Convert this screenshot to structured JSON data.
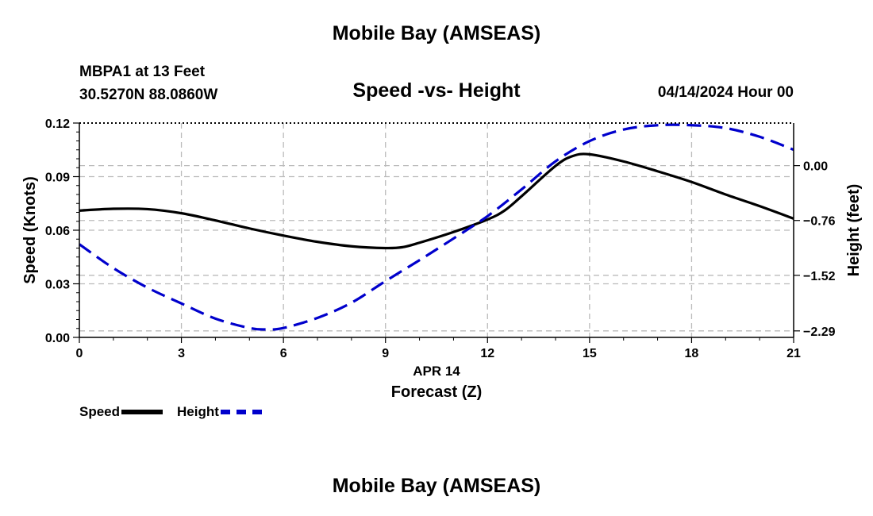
{
  "header": {
    "title": "Mobile Bay (AMSEAS)",
    "station_line": "MBPA1 at 13 Feet",
    "coords_line": "30.5270N  88.0860W",
    "subtitle": "Speed -vs- Height",
    "datetime": "04/14/2024 Hour 00"
  },
  "footer": {
    "title": "Mobile Bay (AMSEAS)"
  },
  "legend": {
    "speed_label": "Speed",
    "height_label": "Height"
  },
  "colors": {
    "speed": "#000000",
    "height": "#0000cc",
    "grid": "#bbbbbb"
  },
  "chart_data": {
    "type": "line",
    "title": "Speed -vs- Height",
    "xlabel": "Forecast (Z)",
    "xdate_label": "APR 14",
    "ylabel": "Speed (Knots)",
    "y2label": "Height (feet)",
    "xlim": [
      0,
      21
    ],
    "ylim": [
      0,
      0.12
    ],
    "y2lim": [
      -2.38,
      0.59
    ],
    "x_ticks": [
      "0",
      "3",
      "6",
      "9",
      "12",
      "15",
      "18",
      "21"
    ],
    "y_ticks": [
      "0.00",
      "0.03",
      "0.06",
      "0.09",
      "0.12"
    ],
    "y2_ticks": [
      "-2.29",
      "-1.52",
      "-0.76",
      "0.00"
    ],
    "grid": true,
    "series": [
      {
        "name": "Speed",
        "axis": "left",
        "style": "solid",
        "x": [
          0,
          1,
          2,
          3,
          4,
          5,
          6,
          7,
          8,
          9,
          9.5,
          10,
          11,
          12,
          12.5,
          13,
          14,
          14.5,
          15,
          16,
          17,
          18,
          19,
          20,
          21
        ],
        "values": [
          0.071,
          0.072,
          0.0718,
          0.0695,
          0.0655,
          0.061,
          0.057,
          0.0535,
          0.051,
          0.05,
          0.0505,
          0.053,
          0.059,
          0.066,
          0.071,
          0.079,
          0.096,
          0.1015,
          0.1025,
          0.0985,
          0.093,
          0.087,
          0.08,
          0.0735,
          0.0665
        ]
      },
      {
        "name": "Height",
        "axis": "right",
        "style": "dashed",
        "x": [
          0,
          1,
          2,
          3,
          4,
          5,
          5.5,
          6,
          7,
          8,
          9,
          10,
          11,
          12,
          13,
          14,
          15,
          16,
          17,
          18,
          19,
          20,
          21
        ],
        "values": [
          -1.09,
          -1.42,
          -1.69,
          -1.91,
          -2.12,
          -2.25,
          -2.27,
          -2.25,
          -2.11,
          -1.9,
          -1.6,
          -1.31,
          -1.01,
          -0.7,
          -0.33,
          0.06,
          0.34,
          0.5,
          0.56,
          0.56,
          0.52,
          0.4,
          0.22
        ]
      }
    ]
  }
}
